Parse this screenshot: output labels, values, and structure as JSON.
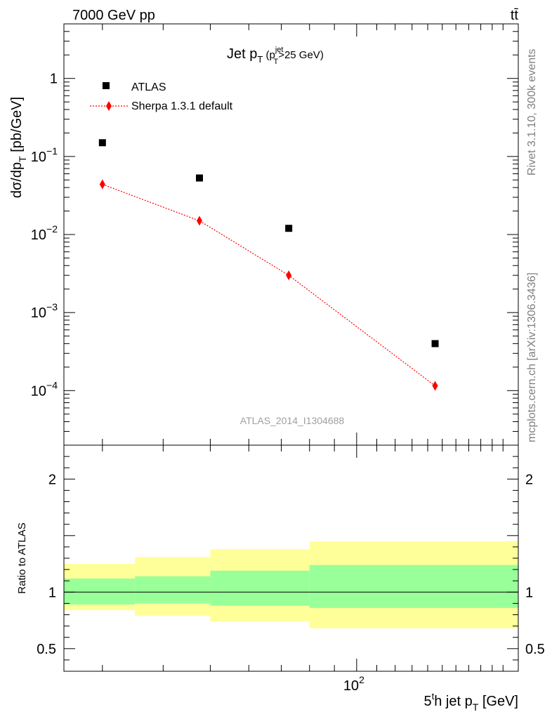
{
  "header": {
    "energy_label": "7000 GeV pp",
    "process_label": "tt̄"
  },
  "side_labels": {
    "rivet": "Rivet 3.1.10,  300k events",
    "mcplots": "mcplots.cern.ch [arXiv:1306.3436]"
  },
  "watermark": "ATLAS_2014_I1304688",
  "chart_data": [
    {
      "type": "scatter",
      "title": "Jet p_T (p_T^jet>25 GeV)",
      "ylabel": "dσ/dp_T [pb/GeV]",
      "xscale": "log",
      "yscale": "log",
      "xlim": [
        25,
        215
      ],
      "ylim": [
        2e-05,
        5
      ],
      "legend_position": "top-left",
      "series": [
        {
          "name": "ATLAS",
          "marker": "square",
          "color": "#000000",
          "x": [
            30,
            47.5,
            72.5,
            145
          ],
          "y": [
            0.15,
            0.053,
            0.012,
            0.0004
          ]
        },
        {
          "name": "Sherpa 1.3.1 default",
          "marker": "diamond",
          "color": "#ff0000",
          "line": "dotted",
          "x": [
            30,
            47.5,
            72.5,
            145
          ],
          "y": [
            0.044,
            0.015,
            0.003,
            0.000115
          ]
        }
      ],
      "y_ticks": [
        {
          "value": 0.0001,
          "base": "10",
          "exp": "−4"
        },
        {
          "value": 0.001,
          "base": "10",
          "exp": "−3"
        },
        {
          "value": 0.01,
          "base": "10",
          "exp": "−2"
        },
        {
          "value": 0.1,
          "base": "10",
          "exp": "−1"
        },
        {
          "value": 1,
          "base": "1",
          "exp": ""
        }
      ]
    },
    {
      "type": "area",
      "ylabel": "Ratio to ATLAS",
      "xlabel": "5^th jet p_T [GeV]",
      "xscale": "log",
      "xlim": [
        25,
        215
      ],
      "ylim": [
        0.3,
        2.3
      ],
      "reference_line": 1,
      "bins": [
        {
          "x_low": 25,
          "x_high": 35,
          "green": [
            0.89,
            1.12
          ],
          "yellow": [
            0.84,
            1.25
          ]
        },
        {
          "x_low": 35,
          "x_high": 50,
          "green": [
            0.9,
            1.14
          ],
          "yellow": [
            0.79,
            1.31
          ]
        },
        {
          "x_low": 50,
          "x_high": 80,
          "green": [
            0.88,
            1.19
          ],
          "yellow": [
            0.74,
            1.38
          ]
        },
        {
          "x_low": 80,
          "x_high": 215,
          "green": [
            0.86,
            1.24
          ],
          "yellow": [
            0.68,
            1.45
          ]
        }
      ],
      "band_colors": {
        "green": "#99ff99",
        "yellow": "#ffff99"
      },
      "y_ticks": [
        {
          "value": 0.5,
          "label": "0.5"
        },
        {
          "value": 1,
          "label": "1"
        },
        {
          "value": 2,
          "label": "2"
        }
      ],
      "x_ticks": [
        {
          "value": 100,
          "base": "10",
          "exp": "2"
        }
      ]
    }
  ]
}
